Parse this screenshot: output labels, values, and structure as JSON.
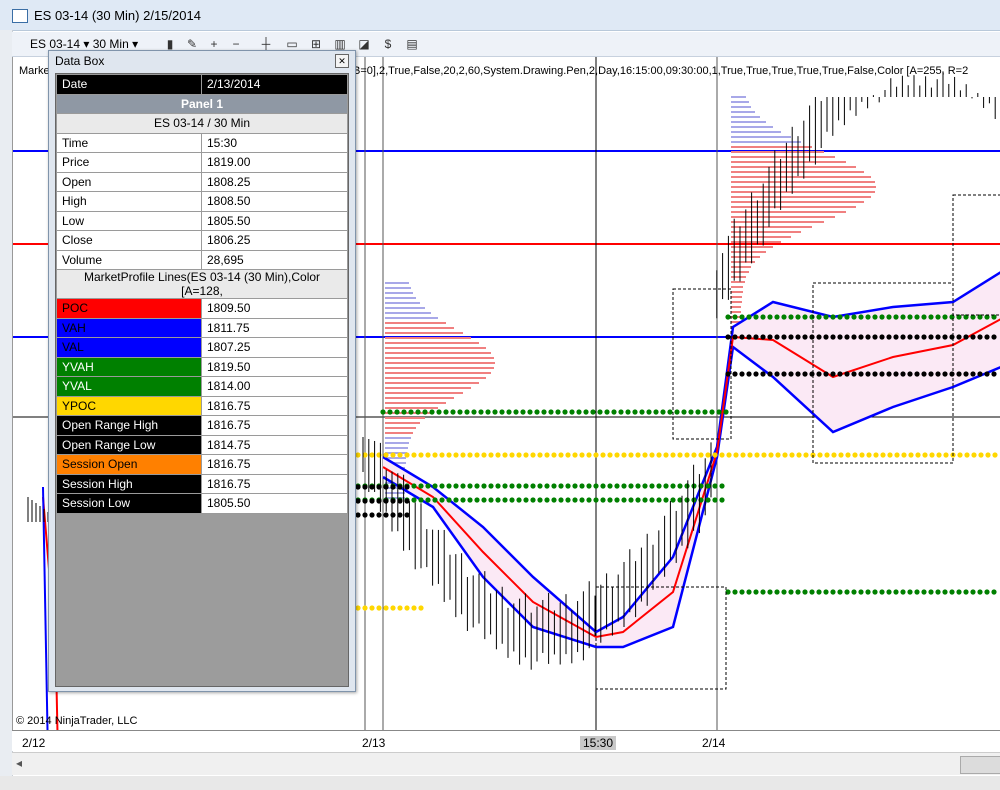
{
  "window": {
    "title": "ES 03-14 (30 Min)  2/15/2014"
  },
  "toolbar": {
    "instrument": "ES 03-14  ▾  30 Min  ▾"
  },
  "chart": {
    "indicator_text": "Marke",
    "indicator_params": "B=0],2,True,False,20,2,60,System.Drawing.Pen,2,Day,16:15:00,09:30:00,1,True,True,True,True,True,False,Color [A=255, R=2",
    "copyright": "© 2014 NinjaTrader, LLC",
    "xaxis_ticks": [
      "2/12",
      "2/13",
      "15:30",
      "2/14"
    ],
    "colors": {
      "poc": "#ff0000",
      "va": "#0000ff",
      "yva": "#008000",
      "ypoc": "#ffd700",
      "session": "#000000",
      "profile_red": "#f08080",
      "profile_blue": "#a8a8e8",
      "band": "#fbe9f5"
    }
  },
  "databox": {
    "title": "Data Box",
    "date_label": "Date",
    "date_value": "2/13/2014",
    "panel": "Panel 1",
    "series": "ES 03-14 / 30 Min",
    "rows": [
      {
        "label": "Time",
        "value": "15:30"
      },
      {
        "label": "Price",
        "value": "1819.00"
      },
      {
        "label": "Open",
        "value": "1808.25"
      },
      {
        "label": "High",
        "value": "1808.50"
      },
      {
        "label": "Low",
        "value": "1805.50"
      },
      {
        "label": "Close",
        "value": "1806.25"
      },
      {
        "label": "Volume",
        "value": "28,695"
      }
    ],
    "indicator": "MarketProfile Lines(ES 03-14 (30 Min),Color [A=128,",
    "lines": [
      {
        "label": "POC",
        "value": "1809.50",
        "bg": "#ff0000",
        "fg": "#000000"
      },
      {
        "label": "VAH",
        "value": "1811.75",
        "bg": "#0000ff",
        "fg": "#000000"
      },
      {
        "label": "VAL",
        "value": "1807.25",
        "bg": "#0000ff",
        "fg": "#000000"
      },
      {
        "label": "YVAH",
        "value": "1819.50",
        "bg": "#008000",
        "fg": "#ffffff"
      },
      {
        "label": "YVAL",
        "value": "1814.00",
        "bg": "#008000",
        "fg": "#ffffff"
      },
      {
        "label": "YPOC",
        "value": "1816.75",
        "bg": "#ffd700",
        "fg": "#000000"
      },
      {
        "label": "Open Range High",
        "value": "1816.75",
        "bg": "#000000",
        "fg": "#ffffff"
      },
      {
        "label": "Open Range Low",
        "value": "1814.75",
        "bg": "#000000",
        "fg": "#ffffff"
      },
      {
        "label": "Session Open",
        "value": "1816.75",
        "bg": "#ff8000",
        "fg": "#000000"
      },
      {
        "label": "Session High",
        "value": "1816.75",
        "bg": "#000000",
        "fg": "#ffffff"
      },
      {
        "label": "Session Low",
        "value": "1805.50",
        "bg": "#000000",
        "fg": "#ffffff"
      }
    ]
  }
}
